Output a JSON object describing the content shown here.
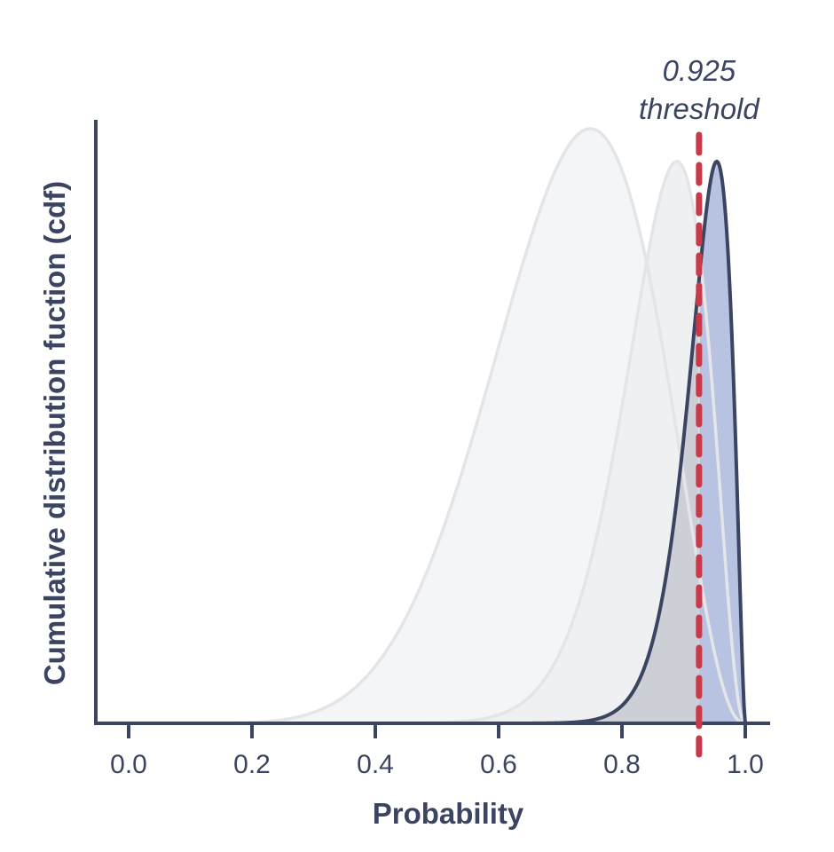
{
  "chart_data": {
    "type": "area",
    "title": "",
    "xlabel": "Probability",
    "ylabel": "Cumulative distribution fuction (cdf)",
    "xlim": [
      -0.05,
      1.04
    ],
    "ylim": [
      0,
      1.06
    ],
    "x_ticks": [
      "0.0",
      "0.2",
      "0.4",
      "0.6",
      "0.8",
      "1.0"
    ],
    "grid": false,
    "threshold": {
      "value": 0.925,
      "label_value": "0.925",
      "label_text": "threshold",
      "color": "#c83a4a"
    },
    "series": [
      {
        "curve": "beta",
        "alpha": 8.0,
        "beta": 3.35,
        "peak": 1.0,
        "fill": "#f4f5f7",
        "stroke": "#e3e5e8",
        "highlighted": false
      },
      {
        "curve": "beta",
        "alpha": 19.0,
        "beta": 3.25,
        "peak": 0.945,
        "fill": "#eff0f2",
        "stroke": "#e3e5e8",
        "highlighted": false
      },
      {
        "curve": "beta",
        "alpha": 34.0,
        "beta": 2.6,
        "peak": 0.945,
        "fill": "#ccd0d6",
        "fill_above_threshold": "#b8c3e2",
        "stroke": "#3b4561",
        "highlighted": true
      }
    ],
    "colors": {
      "axis": "#3b4561",
      "text": "#3b4561"
    }
  }
}
